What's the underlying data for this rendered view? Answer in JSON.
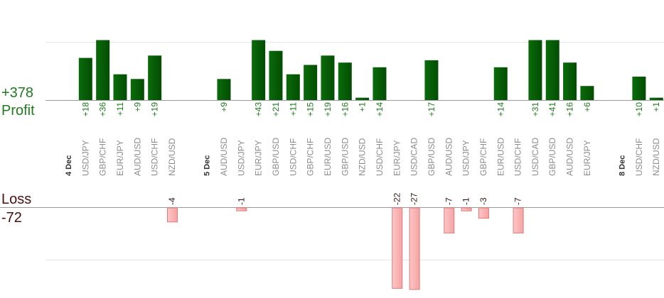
{
  "summary": {
    "profit_total": "+378",
    "profit_label": "Profit",
    "loss_label": "Loss",
    "loss_total": "-72"
  },
  "colors": {
    "profit": "#0a6b0a",
    "profit_dark": "#034d03",
    "loss": "#f4a3a3",
    "loss_border": "#e07b7b",
    "grid": "#e6e6e6",
    "baseline": "#9a9a9a",
    "pair_text": "#8c8c8c",
    "date_text": "#333333",
    "profit_label_text": "#1f7a1f",
    "loss_label_text": "#3a1a1a"
  },
  "chart_data": {
    "type": "bar",
    "title": "",
    "xlabel": "",
    "ylabel": "",
    "profit_ylim": [
      0,
      25
    ],
    "loss_ylim": [
      -22,
      0
    ],
    "categories": [
      {
        "kind": "date",
        "label": "4 Dec"
      },
      {
        "kind": "pair",
        "label": "USD/JPY",
        "value": 18
      },
      {
        "kind": "pair",
        "label": "GBP/CHF",
        "value": 36
      },
      {
        "kind": "pair",
        "label": "EUR/JPY",
        "value": 11
      },
      {
        "kind": "pair",
        "label": "AUD/USD",
        "value": 9
      },
      {
        "kind": "pair",
        "label": "USD/CHF",
        "value": 19
      },
      {
        "kind": "pair",
        "label": "NZD/USD",
        "value": -4
      },
      {
        "kind": "gap"
      },
      {
        "kind": "date",
        "label": "5 Dec"
      },
      {
        "kind": "pair",
        "label": "AUD/USD",
        "value": 9
      },
      {
        "kind": "pair",
        "label": "USD/JPY",
        "value": -1
      },
      {
        "kind": "pair",
        "label": "EUR/JPY",
        "value": 43
      },
      {
        "kind": "pair",
        "label": "GBP/USD",
        "value": 21
      },
      {
        "kind": "pair",
        "label": "USD/CHF",
        "value": 11
      },
      {
        "kind": "pair",
        "label": "GBP/CHF",
        "value": 15
      },
      {
        "kind": "pair",
        "label": "EUR/USD",
        "value": 19
      },
      {
        "kind": "pair",
        "label": "GBP/USD",
        "value": 16
      },
      {
        "kind": "pair",
        "label": "NZD/USD",
        "value": 1
      },
      {
        "kind": "pair",
        "label": "USD/CHF",
        "value": 14
      },
      {
        "kind": "pair",
        "label": "EUR/JPY",
        "value": -22
      },
      {
        "kind": "pair",
        "label": "USD/CAD",
        "value": -27
      },
      {
        "kind": "pair",
        "label": "GBP/USD",
        "value": 17
      },
      {
        "kind": "pair",
        "label": "AUD/USD",
        "value": -7
      },
      {
        "kind": "pair",
        "label": "USD/JPY",
        "value": -1
      },
      {
        "kind": "pair",
        "label": "GBP/CHF",
        "value": -3
      },
      {
        "kind": "pair",
        "label": "EUR/USD",
        "value": 14
      },
      {
        "kind": "pair",
        "label": "USD/CHF",
        "value": -7
      },
      {
        "kind": "pair",
        "label": "USD/CAD",
        "value": 31
      },
      {
        "kind": "pair",
        "label": "GBP/USD",
        "value": 41
      },
      {
        "kind": "pair",
        "label": "AUD/USD",
        "value": 16
      },
      {
        "kind": "pair",
        "label": "EUR/JPY",
        "value": 6
      },
      {
        "kind": "gap"
      },
      {
        "kind": "date",
        "label": "8 Dec"
      },
      {
        "kind": "pair",
        "label": "USD/CHF",
        "value": 10
      },
      {
        "kind": "pair",
        "label": "NZD/USD",
        "value": 1
      }
    ]
  }
}
